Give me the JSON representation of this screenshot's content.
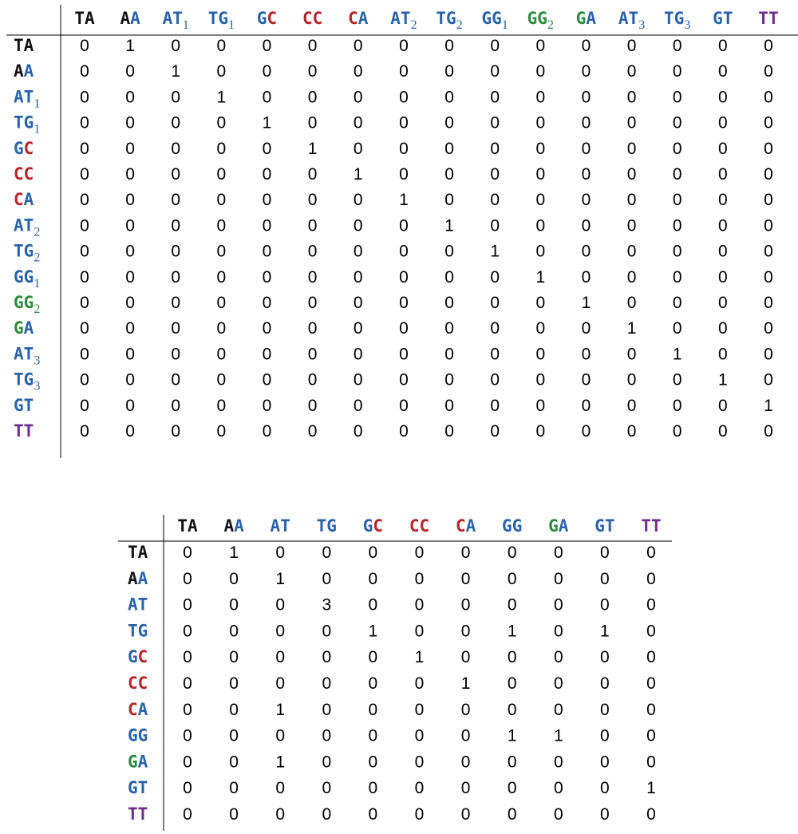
{
  "colors": {
    "black": "#111111",
    "blue": "#2a62a8",
    "red": "#b3262b",
    "green": "#2d8a3e",
    "purple": "#6f2c8f"
  },
  "tables": [
    {
      "name": "table-top",
      "labels": [
        {
          "chars": [
            [
              "T",
              "black"
            ],
            [
              "A",
              "black"
            ]
          ],
          "sub": ""
        },
        {
          "chars": [
            [
              "A",
              "black"
            ],
            [
              "A",
              "blue"
            ]
          ],
          "sub": ""
        },
        {
          "chars": [
            [
              "A",
              "blue"
            ],
            [
              "T",
              "blue"
            ]
          ],
          "sub": "1"
        },
        {
          "chars": [
            [
              "T",
              "blue"
            ],
            [
              "G",
              "blue"
            ]
          ],
          "sub": "1"
        },
        {
          "chars": [
            [
              "G",
              "blue"
            ],
            [
              "C",
              "red"
            ]
          ],
          "sub": ""
        },
        {
          "chars": [
            [
              "C",
              "red"
            ],
            [
              "C",
              "red"
            ]
          ],
          "sub": ""
        },
        {
          "chars": [
            [
              "C",
              "red"
            ],
            [
              "A",
              "blue"
            ]
          ],
          "sub": ""
        },
        {
          "chars": [
            [
              "A",
              "blue"
            ],
            [
              "T",
              "blue"
            ]
          ],
          "sub": "2"
        },
        {
          "chars": [
            [
              "T",
              "blue"
            ],
            [
              "G",
              "blue"
            ]
          ],
          "sub": "2"
        },
        {
          "chars": [
            [
              "G",
              "blue"
            ],
            [
              "G",
              "blue"
            ]
          ],
          "sub": "1"
        },
        {
          "chars": [
            [
              "G",
              "green"
            ],
            [
              "G",
              "green"
            ]
          ],
          "sub": "2"
        },
        {
          "chars": [
            [
              "G",
              "green"
            ],
            [
              "A",
              "blue"
            ]
          ],
          "sub": ""
        },
        {
          "chars": [
            [
              "A",
              "blue"
            ],
            [
              "T",
              "blue"
            ]
          ],
          "sub": "3"
        },
        {
          "chars": [
            [
              "T",
              "blue"
            ],
            [
              "G",
              "blue"
            ]
          ],
          "sub": "3"
        },
        {
          "chars": [
            [
              "G",
              "blue"
            ],
            [
              "T",
              "blue"
            ]
          ],
          "sub": ""
        },
        {
          "chars": [
            [
              "T",
              "purple"
            ],
            [
              "T",
              "purple"
            ]
          ],
          "sub": ""
        }
      ],
      "matrix": [
        [
          "0",
          "1",
          "0",
          "0",
          "0",
          "0",
          "0",
          "0",
          "0",
          "0",
          "0",
          "0",
          "0",
          "0",
          "0",
          "0"
        ],
        [
          "0",
          "0",
          "1",
          "0",
          "0",
          "0",
          "0",
          "0",
          "0",
          "0",
          "0",
          "0",
          "0",
          "0",
          "0",
          "0"
        ],
        [
          "0",
          "0",
          "0",
          "1",
          "0",
          "0",
          "0",
          "0",
          "0",
          "0",
          "0",
          "0",
          "0",
          "0",
          "0",
          "0"
        ],
        [
          "0",
          "0",
          "0",
          "0",
          "1",
          "0",
          "0",
          "0",
          "0",
          "0",
          "0",
          "0",
          "0",
          "0",
          "0",
          "0"
        ],
        [
          "0",
          "0",
          "0",
          "0",
          "0",
          "1",
          "0",
          "0",
          "0",
          "0",
          "0",
          "0",
          "0",
          "0",
          "0",
          "0"
        ],
        [
          "0",
          "0",
          "0",
          "0",
          "0",
          "0",
          "1",
          "0",
          "0",
          "0",
          "0",
          "0",
          "0",
          "0",
          "0",
          "0"
        ],
        [
          "0",
          "0",
          "0",
          "0",
          "0",
          "0",
          "0",
          "1",
          "0",
          "0",
          "0",
          "0",
          "0",
          "0",
          "0",
          "0"
        ],
        [
          "0",
          "0",
          "0",
          "0",
          "0",
          "0",
          "0",
          "0",
          "1",
          "0",
          "0",
          "0",
          "0",
          "0",
          "0",
          "0"
        ],
        [
          "0",
          "0",
          "0",
          "0",
          "0",
          "0",
          "0",
          "0",
          "0",
          "1",
          "0",
          "0",
          "0",
          "0",
          "0",
          "0"
        ],
        [
          "0",
          "0",
          "0",
          "0",
          "0",
          "0",
          "0",
          "0",
          "0",
          "0",
          "1",
          "0",
          "0",
          "0",
          "0",
          "0"
        ],
        [
          "0",
          "0",
          "0",
          "0",
          "0",
          "0",
          "0",
          "0",
          "0",
          "0",
          "0",
          "1",
          "0",
          "0",
          "0",
          "0"
        ],
        [
          "0",
          "0",
          "0",
          "0",
          "0",
          "0",
          "0",
          "0",
          "0",
          "0",
          "0",
          "0",
          "1",
          "0",
          "0",
          "0"
        ],
        [
          "0",
          "0",
          "0",
          "0",
          "0",
          "0",
          "0",
          "0",
          "0",
          "0",
          "0",
          "0",
          "0",
          "1",
          "0",
          "0"
        ],
        [
          "0",
          "0",
          "0",
          "0",
          "0",
          "0",
          "0",
          "0",
          "0",
          "0",
          "0",
          "0",
          "0",
          "0",
          "1",
          "0"
        ],
        [
          "0",
          "0",
          "0",
          "0",
          "0",
          "0",
          "0",
          "0",
          "0",
          "0",
          "0",
          "0",
          "0",
          "0",
          "0",
          "1"
        ],
        [
          "0",
          "0",
          "0",
          "0",
          "0",
          "0",
          "0",
          "0",
          "0",
          "0",
          "0",
          "0",
          "0",
          "0",
          "0",
          "0"
        ]
      ]
    },
    {
      "name": "table-bottom",
      "labels": [
        {
          "chars": [
            [
              "T",
              "black"
            ],
            [
              "A",
              "black"
            ]
          ],
          "sub": ""
        },
        {
          "chars": [
            [
              "A",
              "black"
            ],
            [
              "A",
              "blue"
            ]
          ],
          "sub": ""
        },
        {
          "chars": [
            [
              "A",
              "blue"
            ],
            [
              "T",
              "blue"
            ]
          ],
          "sub": ""
        },
        {
          "chars": [
            [
              "T",
              "blue"
            ],
            [
              "G",
              "blue"
            ]
          ],
          "sub": ""
        },
        {
          "chars": [
            [
              "G",
              "blue"
            ],
            [
              "C",
              "red"
            ]
          ],
          "sub": ""
        },
        {
          "chars": [
            [
              "C",
              "red"
            ],
            [
              "C",
              "red"
            ]
          ],
          "sub": ""
        },
        {
          "chars": [
            [
              "C",
              "red"
            ],
            [
              "A",
              "blue"
            ]
          ],
          "sub": ""
        },
        {
          "chars": [
            [
              "G",
              "blue"
            ],
            [
              "G",
              "blue"
            ]
          ],
          "sub": ""
        },
        {
          "chars": [
            [
              "G",
              "green"
            ],
            [
              "A",
              "blue"
            ]
          ],
          "sub": ""
        },
        {
          "chars": [
            [
              "G",
              "blue"
            ],
            [
              "T",
              "blue"
            ]
          ],
          "sub": ""
        },
        {
          "chars": [
            [
              "T",
              "purple"
            ],
            [
              "T",
              "purple"
            ]
          ],
          "sub": ""
        }
      ],
      "matrix": [
        [
          "0",
          "1",
          "0",
          "0",
          "0",
          "0",
          "0",
          "0",
          "0",
          "0",
          "0"
        ],
        [
          "0",
          "0",
          "1",
          "0",
          "0",
          "0",
          "0",
          "0",
          "0",
          "0",
          "0"
        ],
        [
          "0",
          "0",
          "0",
          "3",
          "0",
          "0",
          "0",
          "0",
          "0",
          "0",
          "0"
        ],
        [
          "0",
          "0",
          "0",
          "0",
          "1",
          "0",
          "0",
          "1",
          "0",
          "1",
          "0"
        ],
        [
          "0",
          "0",
          "0",
          "0",
          "0",
          "1",
          "0",
          "0",
          "0",
          "0",
          "0"
        ],
        [
          "0",
          "0",
          "0",
          "0",
          "0",
          "0",
          "1",
          "0",
          "0",
          "0",
          "0"
        ],
        [
          "0",
          "0",
          "1",
          "0",
          "0",
          "0",
          "0",
          "0",
          "0",
          "0",
          "0"
        ],
        [
          "0",
          "0",
          "0",
          "0",
          "0",
          "0",
          "0",
          "1",
          "1",
          "0",
          "0"
        ],
        [
          "0",
          "0",
          "1",
          "0",
          "0",
          "0",
          "0",
          "0",
          "0",
          "0",
          "0"
        ],
        [
          "0",
          "0",
          "0",
          "0",
          "0",
          "0",
          "0",
          "0",
          "0",
          "0",
          "1"
        ],
        [
          "0",
          "0",
          "0",
          "0",
          "0",
          "0",
          "0",
          "0",
          "0",
          "0",
          "0"
        ]
      ]
    }
  ]
}
